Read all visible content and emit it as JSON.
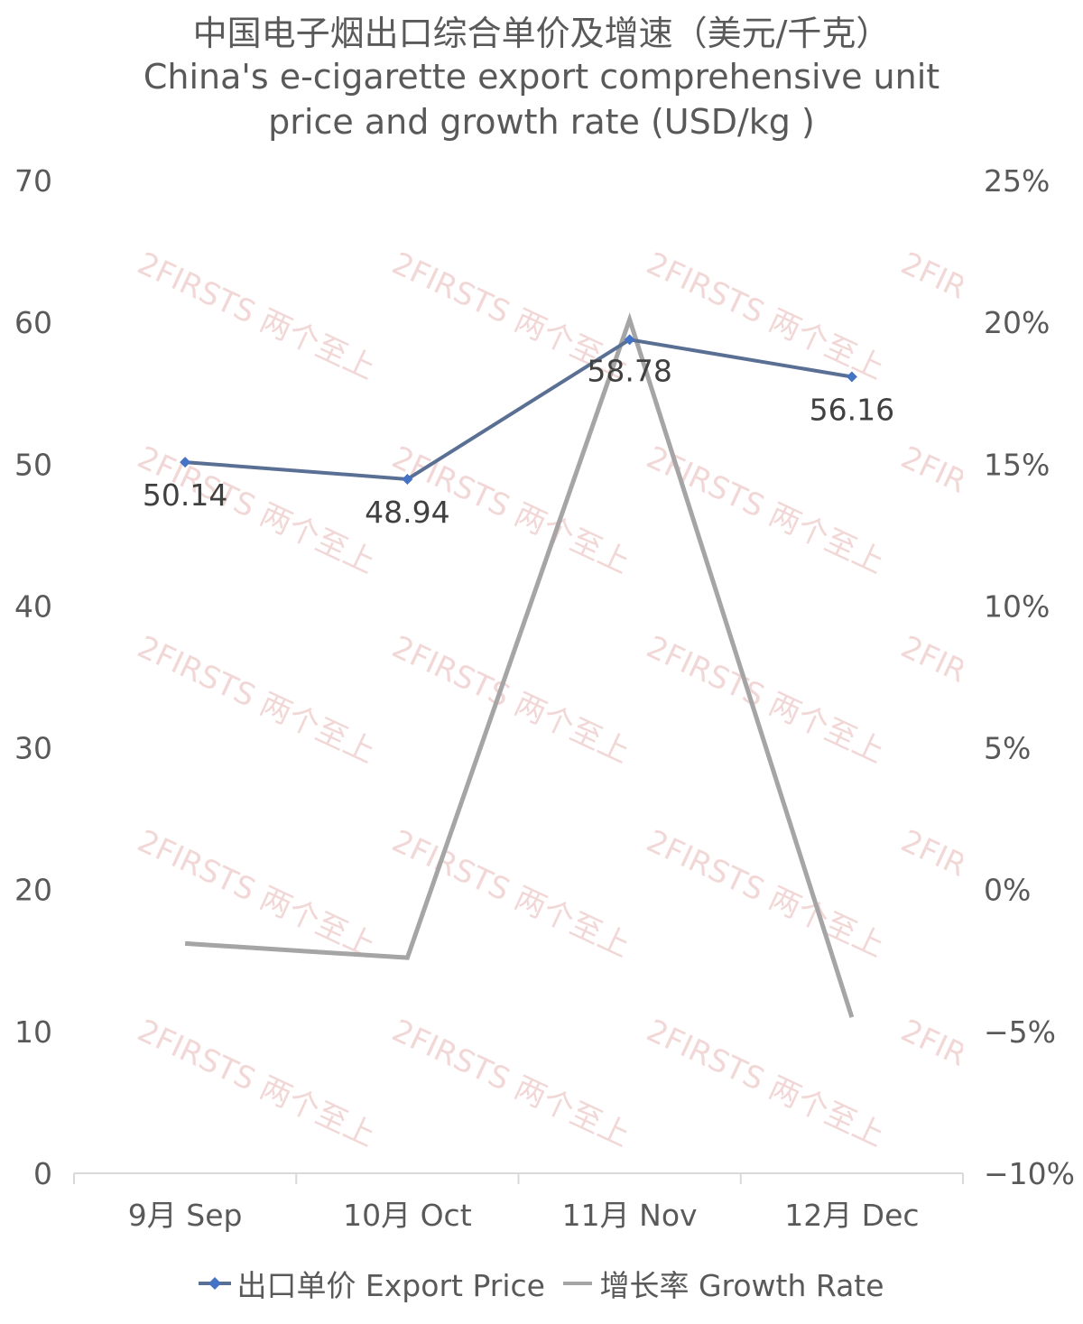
{
  "chart_data": {
    "type": "line",
    "title": "中国电子烟出口综合单价及增速（美元/千克）",
    "subtitle_lines": [
      "China's e-cigarette export comprehensive unit",
      "price and growth rate (USD/kg )"
    ],
    "categories": [
      "9月 Sep",
      "10月 Oct",
      "11月 Nov",
      "12月 Dec"
    ],
    "series": [
      {
        "name": "出口单价 Export Price",
        "axis": "left",
        "values": [
          50.14,
          48.94,
          58.78,
          56.16
        ],
        "labels": [
          "50.14",
          "48.94",
          "58.78",
          "56.16"
        ],
        "color": "#5a6f94",
        "marker_color": "#4472c4",
        "marker": "diamond"
      },
      {
        "name": "增长率 Growth Rate",
        "axis": "right",
        "values": [
          -1.9,
          -2.4,
          20.1,
          -4.5
        ],
        "color": "#a5a5a5"
      }
    ],
    "y_left": {
      "min": 0,
      "max": 70,
      "ticks": [
        0,
        10,
        20,
        30,
        40,
        50,
        60,
        70
      ],
      "tick_labels": [
        "0",
        "10",
        "20",
        "30",
        "40",
        "50",
        "60",
        "70"
      ]
    },
    "y_right": {
      "min": -10,
      "max": 25,
      "ticks": [
        -10,
        -5,
        0,
        5,
        10,
        15,
        20,
        25
      ],
      "tick_labels": [
        "−10%",
        "−5%",
        "0%",
        "5%",
        "10%",
        "15%",
        "20%",
        "25%"
      ]
    },
    "grid": false,
    "legend": "bottom",
    "axis_color": "#d9d9d9"
  },
  "watermark": {
    "text": "2FIRSTS 两个至上",
    "color": "#e8b8b8"
  }
}
